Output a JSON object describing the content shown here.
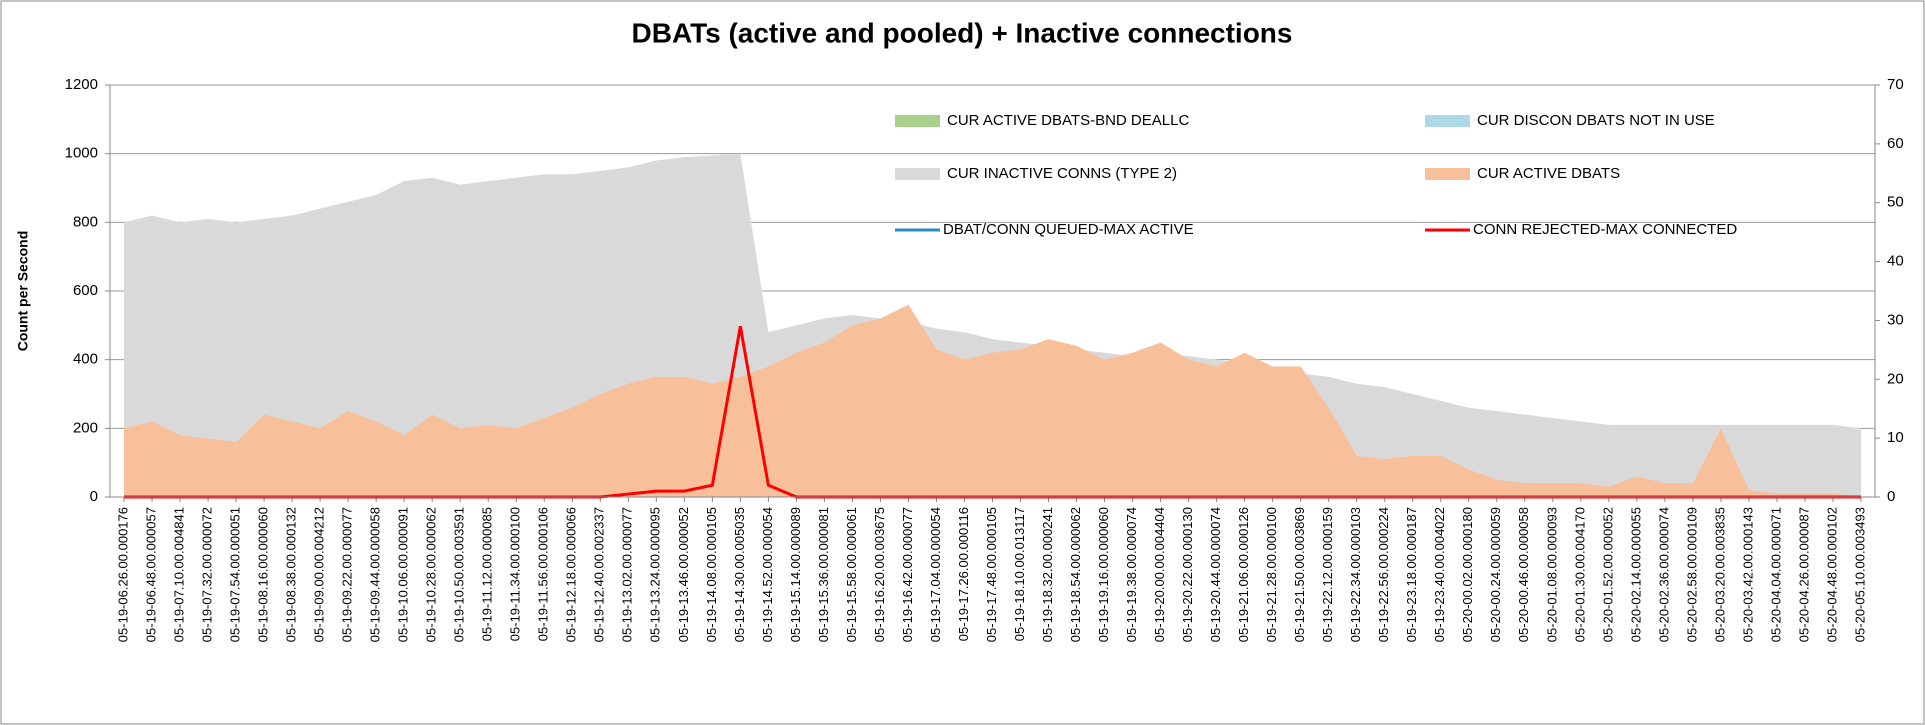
{
  "chart_data": {
    "type": "area",
    "title": "DBATs (active and pooled) + Inactive connections",
    "y_label": "Count per Second",
    "ylim": [
      0,
      1200
    ],
    "yticks": [
      0,
      200,
      400,
      600,
      800,
      1000,
      1200
    ],
    "y2lim": [
      0,
      70
    ],
    "y2ticks": [
      0,
      10,
      20,
      30,
      40,
      50,
      60,
      70
    ],
    "grid": true,
    "categories": [
      "05-19-06.26.00.000176",
      "05-19-06.48.00.000057",
      "05-19-07.10.00.004841",
      "05-19-07.32.00.000072",
      "05-19-07.54.00.000051",
      "05-19-08.16.00.000060",
      "05-19-08.38.00.000132",
      "05-19-09.00.00.004212",
      "05-19-09.22.00.000077",
      "05-19-09.44.00.000058",
      "05-19-10.06.00.000091",
      "05-19-10.28.00.000062",
      "05-19-10.50.00.003591",
      "05-19-11.12.00.000085",
      "05-19-11.34.00.000100",
      "05-19-11.56.00.000106",
      "05-19-12.18.00.000066",
      "05-19-12.40.00.002337",
      "05-19-13.02.00.000077",
      "05-19-13.24.00.000095",
      "05-19-13.46.00.000052",
      "05-19-14.08.00.000105",
      "05-19-14.30.00.005035",
      "05-19-14.52.00.000054",
      "05-19-15.14.00.000089",
      "05-19-15.36.00.000081",
      "05-19-15.58.00.000061",
      "05-19-16.20.00.003675",
      "05-19-16.42.00.000077",
      "05-19-17.04.00.000054",
      "05-19-17.26.00.000116",
      "05-19-17.48.00.000105",
      "05-19-18.10.00.013117",
      "05-19-18.32.00.000241",
      "05-19-18.54.00.000062",
      "05-19-19.16.00.000060",
      "05-19-19.38.00.000074",
      "05-19-20.00.00.004404",
      "05-19-20.22.00.000130",
      "05-19-20.44.00.000074",
      "05-19-21.06.00.000126",
      "05-19-21.28.00.000100",
      "05-19-21.50.00.003869",
      "05-19-22.12.00.000159",
      "05-19-22.34.00.000103",
      "05-19-22.56.00.000224",
      "05-19-23.18.00.000187",
      "05-19-23.40.00.004022",
      "05-20-00.02.00.000180",
      "05-20-00.24.00.000059",
      "05-20-00.46.00.000058",
      "05-20-01.08.00.000093",
      "05-20-01.30.00.004170",
      "05-20-01.52.00.000052",
      "05-20-02.14.00.000055",
      "05-20-02.36.00.000074",
      "05-20-02.58.00.000109",
      "05-20-03.20.00.003835",
      "05-20-03.42.00.000143",
      "05-20-04.04.00.000071",
      "05-20-04.26.00.000087",
      "05-20-04.48.00.000102",
      "05-20-05.10.00.003493"
    ],
    "series": [
      {
        "name": "CUR ACTIVE DBATS-BND DEALLC",
        "color": "#a9d18e",
        "type": "area"
      },
      {
        "name": "CUR DISCON DBATS NOT IN USE",
        "color": "#add8e6",
        "type": "area"
      },
      {
        "name": "CUR INACTIVE CONNS (TYPE 2)",
        "color": "#d9d9d9",
        "type": "area",
        "values": [
          800,
          820,
          800,
          810,
          800,
          810,
          820,
          840,
          860,
          880,
          920,
          930,
          910,
          920,
          930,
          940,
          940,
          950,
          960,
          980,
          990,
          995,
          1000,
          480,
          500,
          520,
          530,
          520,
          510,
          490,
          480,
          460,
          450,
          440,
          430,
          420,
          410,
          420,
          410,
          400,
          390,
          370,
          360,
          350,
          330,
          320,
          300,
          280,
          260,
          250,
          240,
          230,
          220,
          210,
          210,
          210,
          210,
          210,
          210,
          210,
          210,
          210,
          200
        ]
      },
      {
        "name": "CUR ACTIVE DBATS",
        "color": "#f8c09a",
        "type": "area",
        "values": [
          200,
          220,
          180,
          170,
          160,
          240,
          220,
          200,
          250,
          220,
          180,
          240,
          200,
          210,
          200,
          230,
          260,
          300,
          330,
          350,
          350,
          330,
          350,
          380,
          420,
          450,
          500,
          520,
          560,
          430,
          400,
          420,
          430,
          460,
          440,
          400,
          420,
          450,
          400,
          380,
          420,
          380,
          380,
          260,
          120,
          110,
          120,
          120,
          80,
          50,
          40,
          40,
          40,
          30,
          60,
          40,
          40,
          200,
          20,
          10,
          10,
          10,
          0
        ]
      },
      {
        "name": "DBAT/CONN QUEUED-MAX ACTIVE",
        "color": "#2e8bc0",
        "type": "line",
        "axis": "y2"
      },
      {
        "name": "CONN REJECTED-MAX CONNECTED",
        "color": "#ff0000",
        "type": "line",
        "axis": "y2",
        "values": [
          0,
          0,
          0,
          0,
          0,
          0,
          0,
          0,
          0,
          0,
          0,
          0,
          0,
          0,
          0,
          0,
          0,
          0,
          0.5,
          1,
          1,
          2,
          29,
          2,
          0,
          0,
          0,
          0,
          0,
          0,
          0,
          0,
          0,
          0,
          0,
          0,
          0,
          0,
          0,
          0,
          0,
          0,
          0,
          0,
          0,
          0,
          0,
          0,
          0,
          0,
          0,
          0,
          0,
          0,
          0,
          0,
          0,
          0,
          0,
          0,
          0,
          0,
          0
        ]
      }
    ]
  }
}
